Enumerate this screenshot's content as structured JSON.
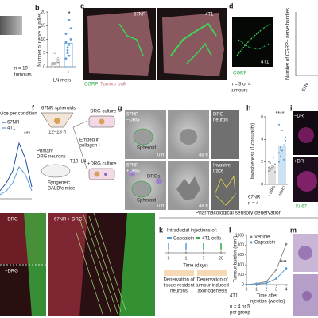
{
  "panels": {
    "b": {
      "label": "b",
      "ylabel": "Number of nerve bundles",
      "ylim": [
        0,
        20
      ],
      "yticks": [
        0,
        5,
        10,
        15,
        20
      ],
      "categories": [
        "–",
        "+"
      ],
      "xlabel": "LN mets",
      "n": "n = 19",
      "n_unit": "tumours",
      "sig": "*",
      "groups": [
        [
          0,
          1,
          0,
          2,
          1,
          5,
          0,
          3
        ],
        [
          3,
          5,
          8,
          10,
          12,
          7,
          4,
          14,
          9,
          6,
          17
        ]
      ],
      "means": [
        1.5,
        8.6
      ]
    },
    "c": {
      "label": "c",
      "left": "67NR",
      "right": "4T1",
      "legend": [
        "CGRP",
        "Tumour bulk"
      ]
    },
    "d": {
      "label": "d",
      "image_label": "4T1",
      "stain": "CGRP",
      "ylabel": "Number of CGRP+ nerve bundles",
      "n": "n = 3 or 4",
      "n_unit": "tumours",
      "category": "67N"
    },
    "e": {
      "title": "vice per condition",
      "series": [
        "67NR",
        "4T1"
      ],
      "sig": "***"
    },
    "f": {
      "label": "f",
      "spheroids": "67NR spheroids",
      "time": "12–18 h",
      "minus": "–DRG culture",
      "embed": [
        "Embed in",
        "collagen I"
      ],
      "neurons": [
        "Primary",
        "DRG neurons"
      ],
      "level": "T10–L4",
      "mice": [
        "Syngeneic",
        "BALB/c mice"
      ],
      "plus": "+DRG culture"
    },
    "g": {
      "label": "g",
      "row1": [
        "67NR",
        "–DRG"
      ],
      "row2": [
        "67NR",
        "+DRG"
      ],
      "spheroid": "Spheroid",
      "t0": "0 h",
      "t48": "48 h",
      "neuron": [
        "DRG",
        "neuron"
      ],
      "drgs": "DRGs",
      "trace": [
        "Invasive",
        "trace"
      ]
    },
    "h": {
      "label": "h",
      "ylabel": "Invasiveness (1/circularity)",
      "ylim": [
        0,
        6
      ],
      "yticks": [
        0,
        2,
        4,
        6
      ],
      "categories": [
        "–DRG",
        "+DRG"
      ],
      "sig": "****",
      "line": "67NR",
      "n": "n = 4",
      "groups": [
        [
          1.2,
          1.4,
          1.5,
          1.6,
          1.8,
          2.0,
          1.3,
          1.7,
          2.4,
          1.1,
          1.5,
          1.9
        ],
        [
          2.0,
          2.5,
          3.0,
          3.5,
          4.2,
          2.8,
          3.3,
          4.8,
          2.2,
          3.9,
          5.3,
          3.1
        ]
      ],
      "means": [
        1.6,
        3.4
      ]
    },
    "i": {
      "label": "i",
      "top": "–DR",
      "bottom": "+DR",
      "stain": "Ki-67"
    },
    "j": {
      "minus": "–DRG",
      "plus": "+DRG",
      "merge": "67NR + DRG"
    },
    "header": "Pharmacological sensory denervation",
    "k": {
      "label": "k",
      "title": "Intraductal injections of:",
      "legend": [
        "Capsaicin",
        "4T1 cells"
      ],
      "days": [
        0,
        1,
        7,
        28
      ],
      "xlabel": "Time (days)",
      "box1": [
        "Denervation of",
        "tissue-resident",
        "neurons"
      ],
      "box2": [
        "Denervation of",
        "tumour-induced",
        "axonogenesis"
      ]
    },
    "l": {
      "label": "l",
      "ylabel": "Tumour burden (mm³)",
      "ylim": [
        0,
        1000
      ],
      "yticks": [
        0,
        200,
        400,
        600,
        800,
        1000
      ],
      "xlim": [
        0,
        4
      ],
      "x": [
        0,
        1,
        2,
        3,
        4
      ],
      "xlabel": [
        "Time after",
        "injection (weeks)"
      ],
      "series": [
        {
          "name": "Vehicle",
          "color": "#888888",
          "values": [
            0,
            20,
            60,
            300,
            820
          ]
        },
        {
          "name": "Capsaicin",
          "color": "#5b9bd5",
          "values": [
            0,
            10,
            30,
            120,
            330
          ]
        }
      ],
      "sig": "****",
      "line": "4T1",
      "n": [
        "n = 4 or 5",
        "per group"
      ]
    },
    "m": {
      "label": "m"
    }
  }
}
